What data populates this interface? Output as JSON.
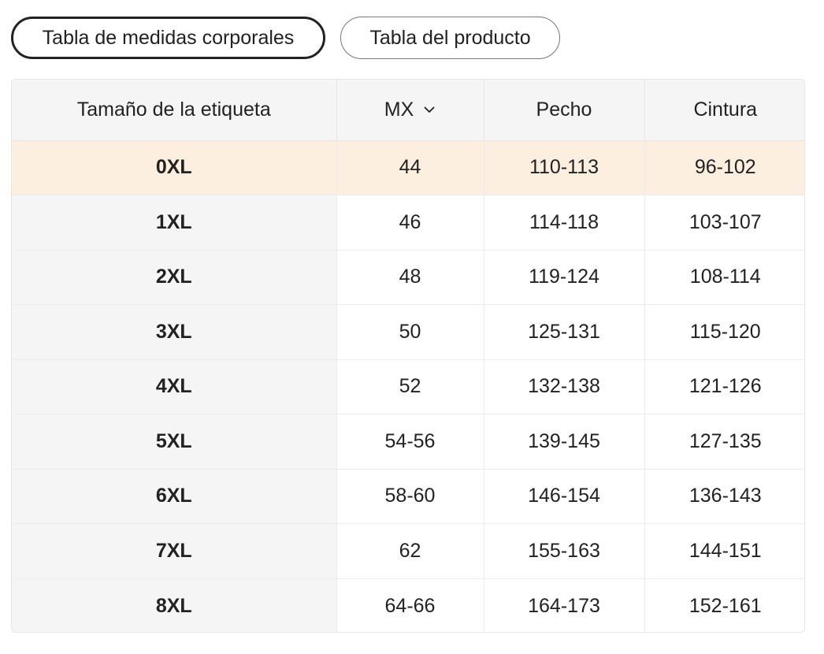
{
  "tabs": [
    {
      "label": "Tabla de medidas corporales",
      "active": true
    },
    {
      "label": "Tabla del producto",
      "active": false
    }
  ],
  "table": {
    "headers": {
      "size": "Tamaño de la etiqueta",
      "region": "MX",
      "chest": "Pecho",
      "waist": "Cintura"
    },
    "region_dropdown_icon": "chevron-down-icon",
    "highlight_color": "#fdefdf",
    "rows": [
      {
        "size": "0XL",
        "mx": "44",
        "chest": "110-113",
        "waist": "96-102",
        "highlighted": true
      },
      {
        "size": "1XL",
        "mx": "46",
        "chest": "114-118",
        "waist": "103-107"
      },
      {
        "size": "2XL",
        "mx": "48",
        "chest": "119-124",
        "waist": "108-114"
      },
      {
        "size": "3XL",
        "mx": "50",
        "chest": "125-131",
        "waist": "115-120"
      },
      {
        "size": "4XL",
        "mx": "52",
        "chest": "132-138",
        "waist": "121-126"
      },
      {
        "size": "5XL",
        "mx": "54-56",
        "chest": "139-145",
        "waist": "127-135"
      },
      {
        "size": "6XL",
        "mx": "58-60",
        "chest": "146-154",
        "waist": "136-143"
      },
      {
        "size": "7XL",
        "mx": "62",
        "chest": "155-163",
        "waist": "144-151"
      },
      {
        "size": "8XL",
        "mx": "64-66",
        "chest": "164-173",
        "waist": "152-161"
      }
    ]
  }
}
